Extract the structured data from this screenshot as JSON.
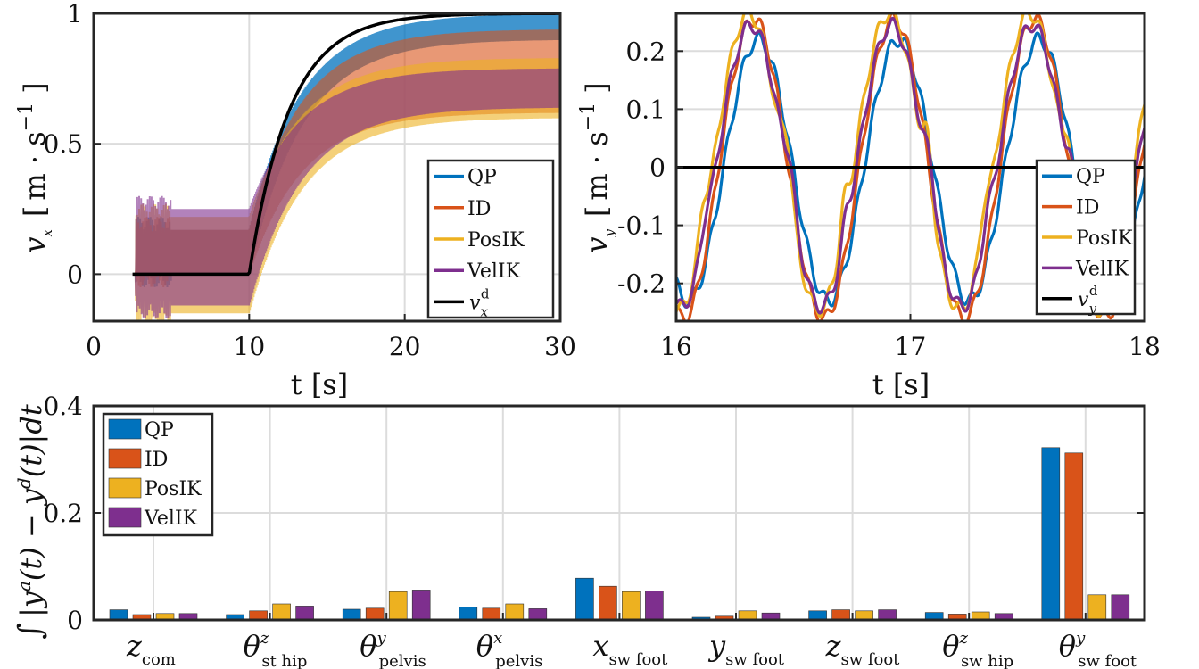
{
  "colors": {
    "QP": "#0072BD",
    "ID": "#D95319",
    "PosIK": "#EDB120",
    "VelIK": "#7E2F8E",
    "ref": "#000000"
  },
  "chart_data": [
    {
      "id": "vx",
      "type": "line",
      "xlabel": "t [s]",
      "ylabel": "v_x [m · s^-1]",
      "ylabel_parts": {
        "sym": "v",
        "sub": "x",
        "bracket_open": "[",
        "unit": "m · s",
        "exp": "−1",
        "bracket_close": "]"
      },
      "xlim": [
        0,
        30
      ],
      "ylim": [
        -0.18,
        1
      ],
      "xticks": [
        0,
        10,
        20,
        30
      ],
      "xtick_labels": [
        "0",
        "10",
        "20",
        "30"
      ],
      "yticks": [
        0,
        0.5,
        1
      ],
      "ytick_labels": [
        "0",
        "0.5",
        "1"
      ],
      "legend": {
        "position": "bottom-right",
        "entries": [
          "QP",
          "ID",
          "PosIK",
          "VelIK"
        ],
        "ref_entry": {
          "sym": "v",
          "sub": "x",
          "sup": "d"
        }
      },
      "reference": {
        "name": "v_x^d",
        "t_step": 10,
        "v_final": 1.0,
        "time_constant": 2.6,
        "t_start": 2.5
      },
      "series": [
        {
          "name": "QP",
          "alpha": 0.75,
          "band_final": [
            0.9,
            1.0
          ],
          "band_pre": [
            0.0,
            0.17
          ]
        },
        {
          "name": "ID",
          "alpha": 0.6,
          "band_final": [
            0.62,
            0.94
          ],
          "band_pre": [
            0.0,
            0.17
          ]
        },
        {
          "name": "PosIK",
          "alpha": 0.6,
          "band_final": [
            0.6,
            0.83
          ],
          "band_pre": [
            -0.15,
            0.22
          ]
        },
        {
          "name": "VelIK",
          "alpha": 0.6,
          "band_final": [
            0.64,
            0.79
          ],
          "band_pre": [
            -0.12,
            0.25
          ]
        }
      ]
    },
    {
      "id": "vy",
      "type": "line",
      "xlabel": "t [s]",
      "ylabel": "v_y [m · s^-1]",
      "ylabel_parts": {
        "sym": "v",
        "sub": "y",
        "bracket_open": "[",
        "unit": "m · s",
        "exp": "−1",
        "bracket_close": "]"
      },
      "xlim": [
        16,
        18
      ],
      "ylim": [
        -0.265,
        0.265
      ],
      "xticks": [
        16,
        17,
        18
      ],
      "xtick_labels": [
        "16",
        "17",
        "18"
      ],
      "yticks": [
        -0.2,
        -0.1,
        0,
        0.1,
        0.2
      ],
      "ytick_labels": [
        "-0.2",
        "-0.1",
        "0",
        "0.1",
        "0.2"
      ],
      "legend": {
        "position": "bottom-right",
        "entries": [
          "QP",
          "ID",
          "PosIK",
          "VelIK"
        ],
        "ref_entry": {
          "sym": "v",
          "sub": "y",
          "sup": "d"
        }
      },
      "reference": {
        "name": "v_y^d",
        "value": 0
      },
      "period": 0.6,
      "series": [
        {
          "name": "QP",
          "phase": 0.0,
          "amp_pos": 0.22,
          "amp_neg": 0.23,
          "bump": 0.0
        },
        {
          "name": "ID",
          "phase": -0.02,
          "amp_pos": 0.255,
          "amp_neg": 0.26,
          "bump": 0.0
        },
        {
          "name": "PosIK",
          "phase": -0.04,
          "amp_pos": 0.265,
          "amp_neg": 0.245,
          "bump": 0.08
        },
        {
          "name": "VelIK",
          "phase": -0.03,
          "amp_pos": 0.245,
          "amp_neg": 0.24,
          "bump": 0.05
        }
      ]
    },
    {
      "id": "errors",
      "type": "bar",
      "ylabel": "∫ |y^a(t) − y^d(t)| dt",
      "ylabel_parts": {
        "int": "∫",
        "open": "|y",
        "sup_a": "a",
        "mid": "(t) − y",
        "sup_d": "d",
        "close": "(t)|dt"
      },
      "ylim": [
        0,
        0.4
      ],
      "yticks": [
        0,
        0.2,
        0.4
      ],
      "ytick_labels": [
        "0",
        "0.2",
        "0.4"
      ],
      "categories": [
        {
          "sym": "z",
          "sup": "",
          "sub": "com"
        },
        {
          "sym": "θ",
          "sup": "z",
          "sub": "st hip"
        },
        {
          "sym": "θ",
          "sup": "y",
          "sub": "pelvis"
        },
        {
          "sym": "θ",
          "sup": "x",
          "sub": "pelvis"
        },
        {
          "sym": "x",
          "sup": "",
          "sub": "sw foot"
        },
        {
          "sym": "y",
          "sup": "",
          "sub": "sw foot"
        },
        {
          "sym": "z",
          "sup": "",
          "sub": "sw foot"
        },
        {
          "sym": "θ",
          "sup": "z",
          "sub": "sw hip"
        },
        {
          "sym": "θ",
          "sup": "y",
          "sub": "sw foot"
        }
      ],
      "legend": {
        "position": "top-left",
        "entries": [
          "QP",
          "ID",
          "PosIK",
          "VelIK"
        ]
      },
      "series": [
        {
          "name": "QP",
          "values": [
            0.019,
            0.01,
            0.02,
            0.024,
            0.078,
            0.005,
            0.017,
            0.014,
            0.322
          ]
        },
        {
          "name": "ID",
          "values": [
            0.01,
            0.017,
            0.022,
            0.022,
            0.063,
            0.007,
            0.019,
            0.011,
            0.312
          ]
        },
        {
          "name": "PosIK",
          "values": [
            0.012,
            0.03,
            0.053,
            0.03,
            0.053,
            0.017,
            0.017,
            0.015,
            0.047
          ]
        },
        {
          "name": "VelIK",
          "values": [
            0.012,
            0.026,
            0.056,
            0.021,
            0.054,
            0.013,
            0.019,
            0.012,
            0.047
          ]
        }
      ]
    }
  ]
}
